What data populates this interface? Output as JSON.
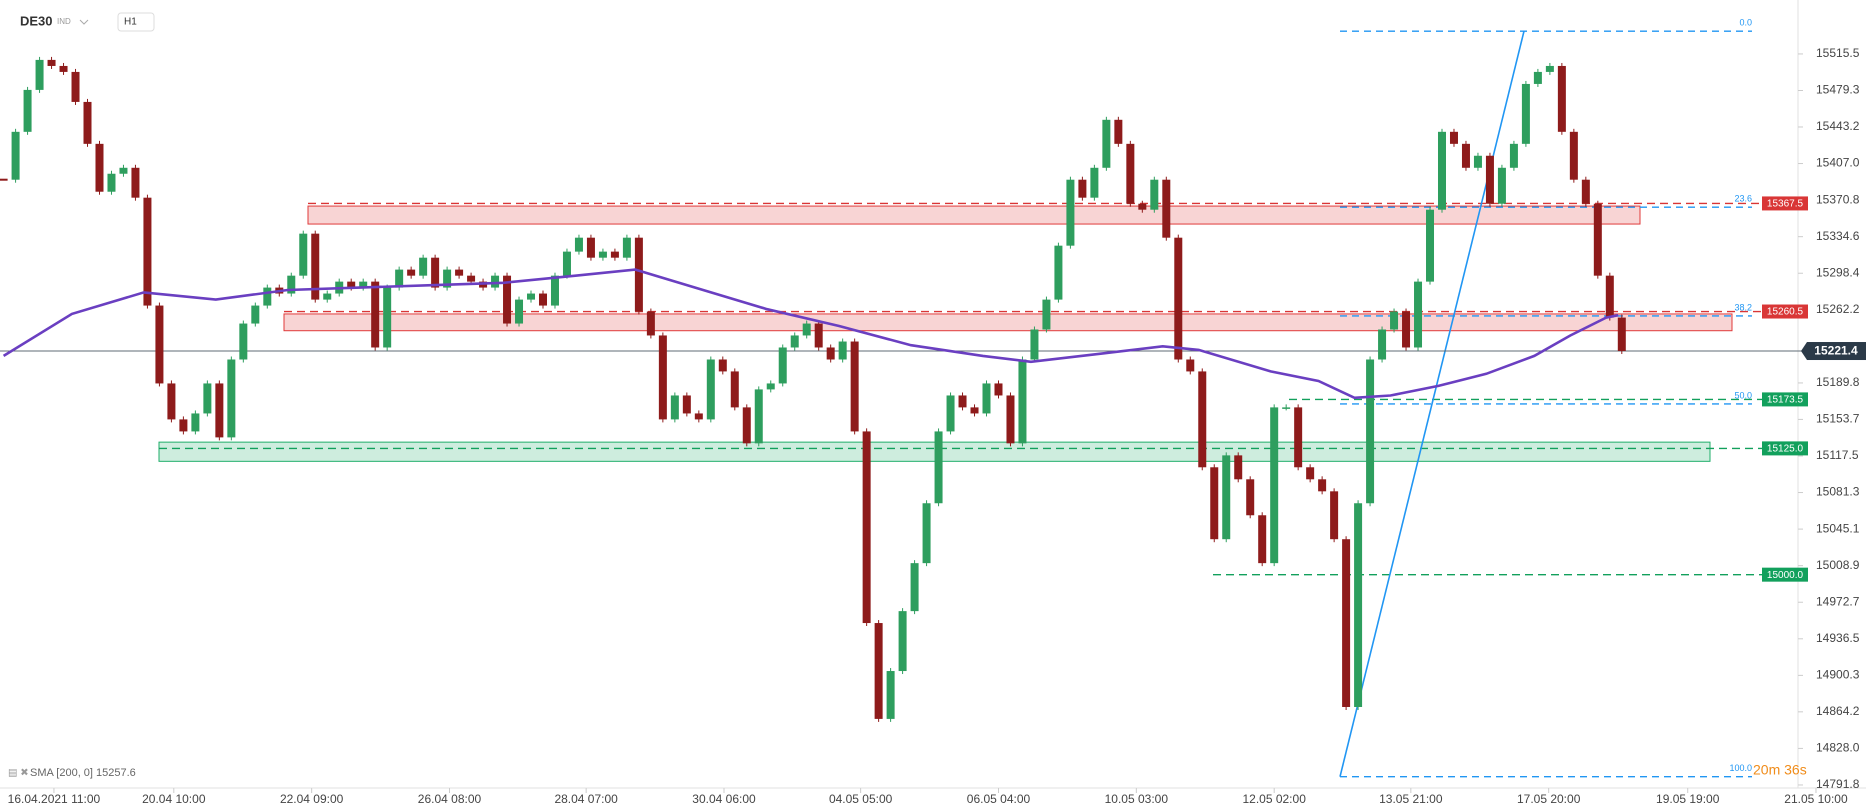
{
  "header": {
    "symbol": "DE30",
    "market": "IND",
    "timeframe": "H1"
  },
  "chart_data": {
    "type": "candlestick",
    "values": [
      15391.0,
      15438.4,
      15479.9,
      15509.6,
      15503.6,
      15497.7,
      15468.0,
      15426.5,
      15379.1,
      15396.9,
      15402.8,
      15373.2,
      15266.4,
      15189.3,
      15153.7,
      15141.8,
      15159.6,
      15189.3,
      15135.9,
      15213.0,
      15248.6,
      15266.4,
      15284.2,
      15278.3,
      15296.0,
      15337.6,
      15272.3,
      15278.3,
      15290.1,
      15284.2,
      15290.1,
      15224.9,
      15284.2,
      15302.0,
      15296.0,
      15313.8,
      15284.2,
      15302.0,
      15296.0,
      15290.1,
      15284.2,
      15296.0,
      15248.6,
      15272.3,
      15278.3,
      15266.4,
      15296.0,
      15319.8,
      15333.6,
      15313.8,
      15319.8,
      15313.8,
      15333.6,
      15260.5,
      15236.8,
      15153.7,
      15177.4,
      15159.6,
      15153.7,
      15213.0,
      15201.2,
      15165.6,
      15130.0,
      15183.4,
      15189.3,
      15224.9,
      15236.8,
      15248.6,
      15224.9,
      15213.0,
      15230.8,
      15141.8,
      14952.1,
      14857.2,
      14904.6,
      14963.9,
      15011.4,
      15070.7,
      15141.8,
      15177.4,
      15165.6,
      15159.6,
      15189.3,
      15177.4,
      15130.0,
      15213.0,
      15242.7,
      15272.3,
      15325.7,
      15391.0,
      15373.2,
      15402.8,
      15450.3,
      15426.5,
      15367.2,
      15361.3,
      15391.0,
      15333.6,
      15213.0,
      15201.2,
      15106.3,
      15035.1,
      15118.1,
      15094.4,
      15058.8,
      15011.4,
      15165.6,
      15165.6,
      15106.3,
      15094.4,
      15082.5,
      15035.1,
      14869.0,
      15070.7,
      15213.0,
      15242.7,
      15260.5,
      15224.9,
      15290.1,
      15361.3,
      15438.4,
      15426.5,
      15402.8,
      15414.7,
      15367.2,
      15402.8,
      15426.5,
      15485.8,
      15497.7,
      15503.6,
      15438.4,
      15391.0,
      15367.2,
      15296.0,
      15254.5,
      15221.4
    ],
    "up_color": "#2e9e5e",
    "down_color": "#8e1b1b",
    "xlim": [
      -0.3,
      149.7
    ],
    "ylim": [
      14788.8,
      15568.9
    ],
    "xticks": [
      {
        "value": 4.2,
        "label": "16.04.2021 11:00"
      },
      {
        "value": 14.2,
        "label": "20.04 10:00"
      },
      {
        "value": 25.7,
        "label": "22.04 09:00"
      },
      {
        "value": 37.2,
        "label": "26.04 08:00"
      },
      {
        "value": 48.6,
        "label": "28.04 07:00"
      },
      {
        "value": 60.1,
        "label": "30.04 06:00"
      },
      {
        "value": 71.5,
        "label": "04.05 05:00"
      },
      {
        "value": 83.0,
        "label": "06.05 04:00"
      },
      {
        "value": 94.5,
        "label": "10.05 03:00"
      },
      {
        "value": 106.0,
        "label": "12.05 02:00"
      },
      {
        "value": 117.4,
        "label": "13.05 21:00"
      },
      {
        "value": 128.9,
        "label": "17.05 20:00"
      },
      {
        "value": 140.5,
        "label": "19.05 19:00"
      },
      {
        "value": 151.2,
        "label": "21.05 10:00"
      }
    ],
    "yticks": [
      15515.5,
      15479.3,
      15443.2,
      {
        "value": 15407,
        "label": "15407.0"
      },
      15370.8,
      15334.6,
      15298.4,
      15262.2,
      15189.8,
      15153.7,
      15117.5,
      15081.3,
      15045.1,
      15008.9,
      14972.7,
      14936.5,
      14900.3,
      14864.2,
      {
        "value": 14828,
        "label": "14828.0"
      },
      14791.8
    ],
    "sma": {
      "name": "SMA [200, 0] 15257.6",
      "color": "#6a3fc1",
      "x": [
        0,
        5.7,
        11.7,
        17.7,
        23.7,
        29.7,
        35.7,
        41.7,
        47.7,
        52.7,
        57.7,
        63.7,
        69.7,
        75.7,
        81.7,
        85.7,
        91.7,
        96.7,
        99.7,
        105.7,
        109.7,
        112.7,
        115.7,
        119.7,
        123.7,
        127.7,
        130.7,
        133.7,
        134.7
      ],
      "values": [
        15216.6,
        15258.1,
        15279.4,
        15272.3,
        15281.8,
        15284.2,
        15286.6,
        15288.9,
        15296.0,
        15302.0,
        15284.2,
        15262.8,
        15246.2,
        15227.2,
        15216.6,
        15210.7,
        15219.0,
        15226.1,
        15222.5,
        15201.2,
        15191.7,
        15175.1,
        15177.4,
        15186.9,
        15198.8,
        15216.6,
        15236.8,
        15254.5,
        15256.9
      ]
    },
    "zones": [
      {
        "from": 15347.1,
        "to": 15364.9,
        "color": "#e03a3a"
      },
      {
        "from": 15241.5,
        "to": 15258.1,
        "color": "#e03a3a"
      },
      {
        "from": 15112.2,
        "to": 15131.2,
        "color": "#1fae6a"
      }
    ],
    "levels": [
      15367.5,
      15260.5,
      15173.5,
      {
        "value": 15125,
        "label": "15125.0"
      },
      {
        "value": 15000,
        "label": "15000.0"
      }
    ],
    "level_colors": [
      "#d93636",
      "#d93636",
      "#12a05c",
      "#12a05c",
      "#12a05c"
    ],
    "last": 15221.4,
    "fib": {
      "high": 15538,
      "low": 14800,
      "color": "#2196f3",
      "levels": [
        {
          "value": 0,
          "label": "0.0"
        },
        23.6,
        38.2,
        {
          "value": 50,
          "label": "50.0"
        },
        {
          "value": 100,
          "label": "100.0"
        }
      ]
    },
    "countdown": "20m 36s"
  }
}
